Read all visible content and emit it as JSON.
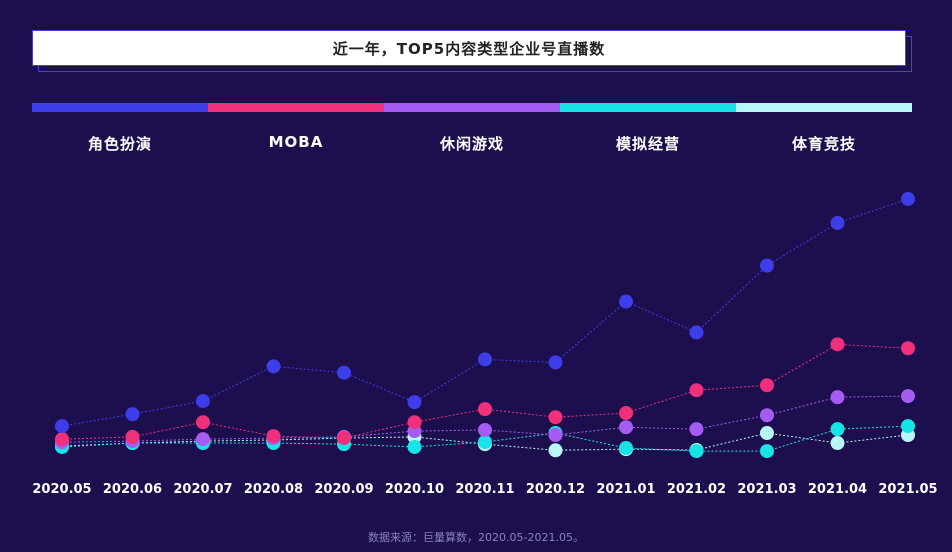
{
  "title": "近一年，TOP5内容类型企业号直播数",
  "source_note": "数据来源：巨量算数，2020.05-2021.05。",
  "colors": {
    "background": "#1d0f4e",
    "series": [
      "#3d3dea",
      "#f0307a",
      "#a45cf2",
      "#18e4e8",
      "#b8f6f8"
    ]
  },
  "chart_data": {
    "type": "line",
    "title": "近一年，TOP5内容类型企业号直播数",
    "x": [
      "2020.05",
      "2020.06",
      "2020.07",
      "2020.08",
      "2020.09",
      "2020.10",
      "2020.11",
      "2020.12",
      "2021.01",
      "2021.02",
      "2021.03",
      "2021.04",
      "2021.05"
    ],
    "ylim": [
      0,
      100
    ],
    "grid": false,
    "legend": "top",
    "series": [
      {
        "name": "角色扮演",
        "values": [
          8.6,
          12.9,
          17.6,
          30.1,
          27.8,
          17.2,
          32.6,
          31.5,
          53.4,
          42.3,
          66.3,
          81.7,
          90.3
        ]
      },
      {
        "name": "MOBA",
        "values": [
          3.9,
          4.7,
          10.0,
          5.0,
          4.3,
          10.0,
          14.7,
          11.8,
          13.3,
          21.5,
          23.3,
          38.0,
          36.6
        ]
      },
      {
        "name": "休闲游戏",
        "values": [
          2.8,
          3.2,
          3.9,
          4.3,
          4.7,
          6.8,
          7.2,
          5.4,
          8.2,
          7.5,
          12.5,
          19.0,
          19.4
        ]
      },
      {
        "name": "模拟经营",
        "values": [
          1.1,
          2.5,
          2.5,
          2.5,
          2.1,
          1.1,
          2.9,
          6.1,
          0.7,
          -0.4,
          -0.4,
          7.5,
          8.6
        ]
      },
      {
        "name": "体育竞技",
        "values": [
          1.4,
          2.5,
          3.2,
          3.6,
          4.3,
          4.7,
          2.1,
          -0.1,
          0.3,
          0.0,
          6.1,
          2.5,
          5.4
        ]
      }
    ]
  }
}
